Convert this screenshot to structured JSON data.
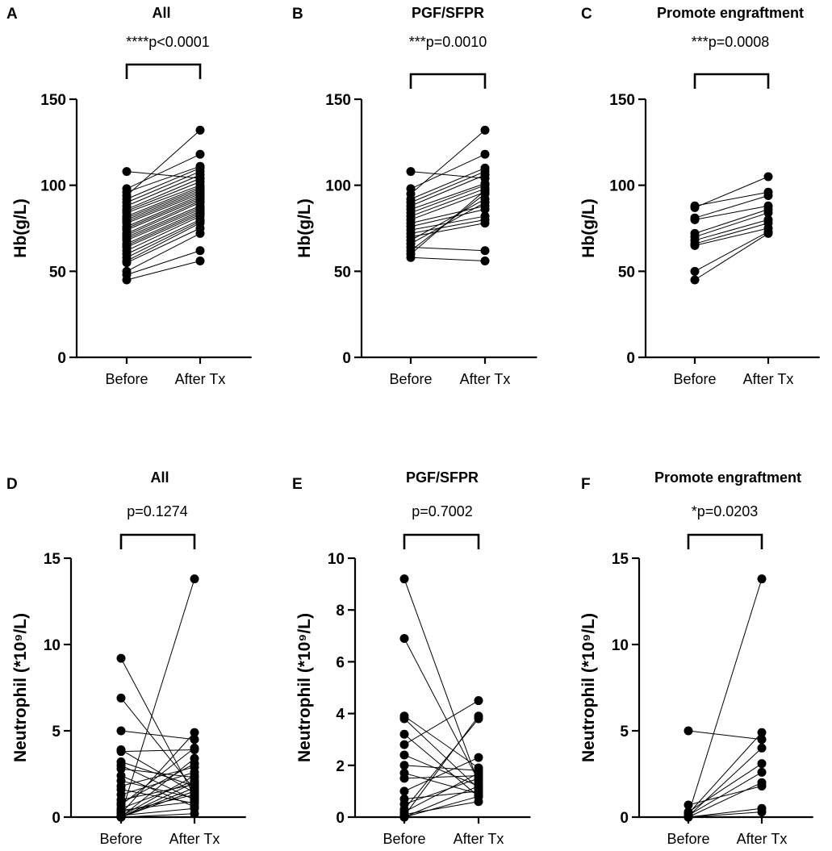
{
  "chart_data": [
    {
      "panel": "A",
      "type": "scatter",
      "title": "All",
      "pvalue": "****p<0.0001",
      "ylabel": "Hb(g/L)",
      "ylim": [
        0,
        150
      ],
      "yticks": [
        0,
        50,
        100,
        150
      ],
      "categories": [
        "Before",
        "After Tx"
      ],
      "pairs": [
        [
          108,
          104
        ],
        [
          98,
          118
        ],
        [
          96,
          111
        ],
        [
          94,
          132
        ],
        [
          92,
          110
        ],
        [
          90,
          108
        ],
        [
          88,
          106
        ],
        [
          86,
          104
        ],
        [
          85,
          102
        ],
        [
          84,
          100
        ],
        [
          82,
          99
        ],
        [
          81,
          98
        ],
        [
          80,
          97
        ],
        [
          79,
          96
        ],
        [
          78,
          95
        ],
        [
          76,
          94
        ],
        [
          75,
          93
        ],
        [
          74,
          92
        ],
        [
          72,
          91
        ],
        [
          71,
          90
        ],
        [
          70,
          88
        ],
        [
          69,
          87
        ],
        [
          68,
          86
        ],
        [
          66,
          85
        ],
        [
          65,
          84
        ],
        [
          64,
          83
        ],
        [
          62,
          82
        ],
        [
          60,
          80
        ],
        [
          58,
          79
        ],
        [
          56,
          78
        ],
        [
          55,
          75
        ],
        [
          50,
          72
        ],
        [
          48,
          62
        ],
        [
          45,
          56
        ]
      ]
    },
    {
      "panel": "B",
      "type": "scatter",
      "title": "PGF/SFPR",
      "pvalue": "***p=0.0010",
      "ylabel": "Hb(g/L)",
      "ylim": [
        0,
        150
      ],
      "yticks": [
        0,
        50,
        100,
        150
      ],
      "categories": [
        "Before",
        "After Tx"
      ],
      "pairs": [
        [
          108,
          104
        ],
        [
          98,
          118
        ],
        [
          95,
          132
        ],
        [
          92,
          110
        ],
        [
          90,
          108
        ],
        [
          88,
          106
        ],
        [
          86,
          101
        ],
        [
          84,
          100
        ],
        [
          82,
          98
        ],
        [
          80,
          96
        ],
        [
          78,
          88
        ],
        [
          76,
          86
        ],
        [
          74,
          82
        ],
        [
          72,
          80
        ],
        [
          70,
          78
        ],
        [
          68,
          92
        ],
        [
          66,
          90
        ],
        [
          64,
          62
        ],
        [
          62,
          95
        ],
        [
          60,
          97
        ],
        [
          58,
          56
        ]
      ]
    },
    {
      "panel": "C",
      "type": "scatter",
      "title": "Promote engraftment",
      "pvalue": "***p=0.0008",
      "ylabel": "Hb(g/L)",
      "ylim": [
        0,
        150
      ],
      "yticks": [
        0,
        50,
        100,
        150
      ],
      "categories": [
        "Before",
        "After Tx"
      ],
      "pairs": [
        [
          88,
          96
        ],
        [
          87,
          105
        ],
        [
          81,
          94
        ],
        [
          80,
          88
        ],
        [
          72,
          86
        ],
        [
          70,
          84
        ],
        [
          68,
          80
        ],
        [
          66,
          78
        ],
        [
          65,
          75
        ],
        [
          50,
          73
        ],
        [
          45,
          72
        ]
      ]
    },
    {
      "panel": "D",
      "type": "scatter",
      "title": "All",
      "pvalue": "p=0.1274",
      "ylabel": "Neutrophil (*10⁹/L)",
      "ylim": [
        0,
        15
      ],
      "yticks": [
        0,
        5,
        10,
        15
      ],
      "categories": [
        "Before",
        "After Tx"
      ],
      "pairs": [
        [
          9.2,
          1.2
        ],
        [
          6.9,
          1.6
        ],
        [
          5.0,
          4.5
        ],
        [
          3.9,
          1.4
        ],
        [
          3.8,
          3.9
        ],
        [
          3.2,
          1.8
        ],
        [
          3.0,
          1.0
        ],
        [
          2.8,
          2.3
        ],
        [
          2.4,
          0.6
        ],
        [
          2.1,
          1.1
        ],
        [
          1.8,
          2.9
        ],
        [
          1.6,
          0.8
        ],
        [
          1.3,
          2.6
        ],
        [
          1.0,
          1.9
        ],
        [
          0.8,
          3.1
        ],
        [
          0.7,
          4.0
        ],
        [
          0.5,
          2.1
        ],
        [
          0.4,
          0.9
        ],
        [
          0.3,
          1.3
        ],
        [
          0.2,
          4.9
        ],
        [
          0.15,
          13.8
        ],
        [
          0.1,
          0.5
        ],
        [
          0.05,
          2.4
        ],
        [
          0.0,
          3.4
        ],
        [
          0.0,
          1.5
        ],
        [
          0.0,
          0.2
        ],
        [
          0.0,
          1.7
        ],
        [
          0.0,
          2.0
        ]
      ]
    },
    {
      "panel": "E",
      "type": "scatter",
      "title": "PGF/SFPR",
      "pvalue": "p=0.7002",
      "ylabel": "Neutrophil (*10⁹/L)",
      "ylim": [
        0,
        10
      ],
      "yticks": [
        0,
        2,
        4,
        6,
        8,
        10
      ],
      "categories": [
        "Before",
        "After Tx"
      ],
      "pairs": [
        [
          9.2,
          1.3
        ],
        [
          6.9,
          1.4
        ],
        [
          3.9,
          1.9
        ],
        [
          3.8,
          1.1
        ],
        [
          3.2,
          0.8
        ],
        [
          2.8,
          4.5
        ],
        [
          2.4,
          1.2
        ],
        [
          2.0,
          1.8
        ],
        [
          1.7,
          0.9
        ],
        [
          1.5,
          1.6
        ],
        [
          1.0,
          2.3
        ],
        [
          0.7,
          1.0
        ],
        [
          0.5,
          1.5
        ],
        [
          0.3,
          3.8
        ],
        [
          0.2,
          1.7
        ],
        [
          0.1,
          0.6
        ],
        [
          0.05,
          3.9
        ],
        [
          0.0,
          1.2
        ],
        [
          0.0,
          0.8
        ]
      ]
    },
    {
      "panel": "F",
      "type": "scatter",
      "title": "Promote engraftment",
      "pvalue": "*p=0.0203",
      "ylabel": "Neutrophil (*10⁹/L)",
      "ylim": [
        0,
        15
      ],
      "yticks": [
        0,
        5,
        10,
        15
      ],
      "categories": [
        "Before",
        "After Tx"
      ],
      "pairs": [
        [
          5.0,
          4.5
        ],
        [
          0.7,
          1.8
        ],
        [
          0.3,
          3.1
        ],
        [
          0.2,
          4.9
        ],
        [
          0.15,
          13.8
        ],
        [
          0.1,
          2.6
        ],
        [
          0.05,
          4.0
        ],
        [
          0.0,
          2.0
        ],
        [
          0.0,
          0.5
        ],
        [
          0.0,
          0.3
        ]
      ]
    }
  ]
}
